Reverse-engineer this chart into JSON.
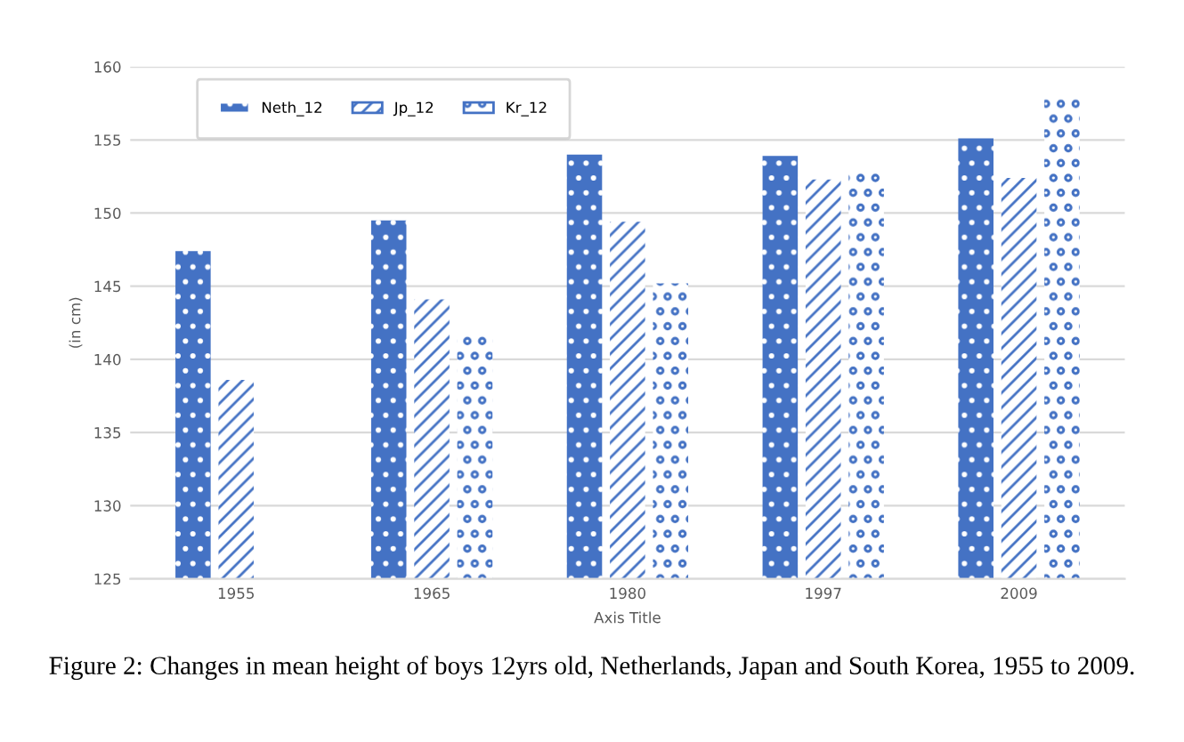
{
  "chart_data": {
    "type": "bar",
    "xlabel": "Axis Title",
    "ylabel": "(in cm)",
    "categories": [
      "1955",
      "1965",
      "1980",
      "1997",
      "2009"
    ],
    "series": [
      {
        "name": "Neth_12",
        "color": "#4472c4",
        "values": [
          147.4,
          149.5,
          154.0,
          153.9,
          155.1
        ]
      },
      {
        "name": "Jp_12",
        "color": "#4472c4",
        "values": [
          138.6,
          144.1,
          149.4,
          152.3,
          152.4
        ]
      },
      {
        "name": "Kr_12",
        "color": "#4472c4",
        "values": [
          null,
          141.7,
          145.2,
          153.0,
          157.8
        ]
      }
    ],
    "ylim": [
      125,
      160
    ],
    "yticks": [
      125,
      130,
      135,
      140,
      145,
      150,
      155,
      160
    ],
    "grid": "y",
    "legend": "top left",
    "annotations": [
      "Figure 2: Changes in mean height of boys 12yrs old, Netherlands, Japan and South Korea, 1955 to 2009."
    ]
  }
}
